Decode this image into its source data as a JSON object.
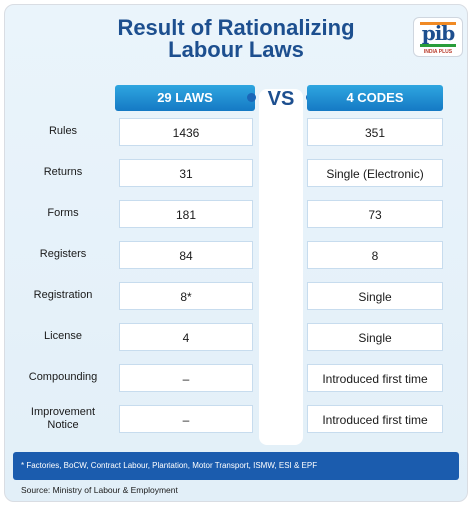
{
  "title": [
    "Result of Rationalizing",
    "Labour Laws"
  ],
  "logo": {
    "text": "pib",
    "sub": "INDIA PLUS"
  },
  "headers": {
    "left": "29 LAWS",
    "vs": "VS",
    "right": "4 CODES"
  },
  "rows": [
    {
      "label": "Rules",
      "laws": "1436",
      "codes": "351"
    },
    {
      "label": "Returns",
      "laws": "31",
      "codes": "Single (Electronic)"
    },
    {
      "label": "Forms",
      "laws": "181",
      "codes": "73"
    },
    {
      "label": "Registers",
      "laws": "84",
      "codes": "8"
    },
    {
      "label": "Registration",
      "laws": "8*",
      "codes": "Single"
    },
    {
      "label": "License",
      "laws": "4",
      "codes": "Single"
    },
    {
      "label": "Compounding",
      "laws": "–",
      "codes": "Introduced first time"
    },
    {
      "label": "Improvement Notice",
      "laws": "–",
      "codes": "Introduced first time"
    }
  ],
  "footnote": "* Factories, BoCW, Contract Labour, Plantation, Motor Transport, ISMW, ESI & EPF",
  "source": "Source: Ministry of Labour & Employment"
}
